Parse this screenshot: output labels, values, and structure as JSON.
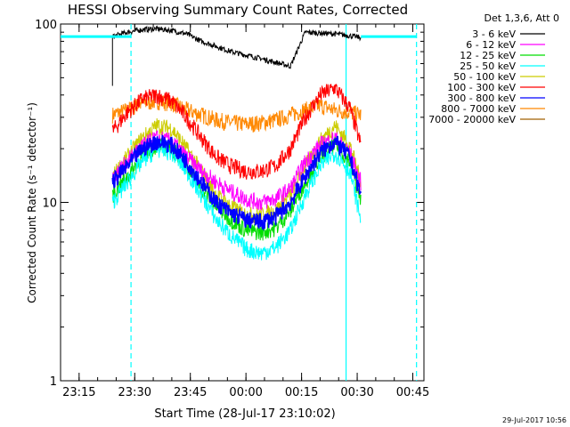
{
  "chart_data": {
    "type": "line",
    "title": "HESSI Observing Summary Count Rates, Corrected",
    "xlabel": "Start Time (28-Jul-17 23:10:02)",
    "ylabel": "Corrected Count Rate (s⁻¹ detector⁻¹)",
    "y_scale": "log",
    "ylim": [
      1,
      100
    ],
    "y_ticks": [
      1,
      10,
      100
    ],
    "y_tick_labels": [
      "1",
      "10",
      "100"
    ],
    "xlim": [
      "23:10",
      "00:48"
    ],
    "x_ticks": [
      "23:15",
      "23:30",
      "23:45",
      "00:00",
      "00:15",
      "00:30",
      "00:45"
    ],
    "legend": {
      "header": "Det 1,3,6, Att 0",
      "placement": "outside-right"
    },
    "timestamp": "29-Jul-2017 10:56",
    "time_points": [
      "23:24",
      "23:28",
      "23:32",
      "23:36",
      "23:40",
      "23:44",
      "23:48",
      "23:52",
      "23:56",
      "00:00",
      "00:04",
      "00:08",
      "00:12",
      "00:16",
      "00:20",
      "00:24",
      "00:28",
      "00:31"
    ],
    "series": [
      {
        "name": "3 - 6 keV",
        "color": "#000000",
        "values": [
          85,
          90,
          93,
          94,
          92,
          88,
          80,
          75,
          70,
          67,
          64,
          61,
          58,
          90,
          89,
          88,
          86,
          84
        ]
      },
      {
        "name": "6 - 12 keV",
        "color": "#ff00ff",
        "values": [
          14,
          17,
          21,
          23,
          22,
          18,
          15,
          13,
          11.5,
          10.5,
          10,
          10.5,
          12,
          17,
          21,
          23,
          19,
          13
        ]
      },
      {
        "name": "12 - 25 keV",
        "color": "#00dd00",
        "values": [
          11,
          14,
          18,
          21,
          20,
          16,
          12,
          9.5,
          8,
          7,
          6.8,
          7.2,
          9,
          13,
          18,
          21,
          17,
          10
        ]
      },
      {
        "name": "25 - 50 keV",
        "color": "#00ffff",
        "values": [
          10,
          13,
          17,
          20,
          19,
          15,
          11,
          8,
          6.5,
          5.5,
          5.2,
          5.6,
          7,
          11,
          16,
          19,
          15,
          8
        ]
      },
      {
        "name": "50 - 100 keV",
        "color": "#cccc00",
        "values": [
          14,
          18,
          23,
          27,
          26,
          20,
          15,
          11,
          9.5,
          8.5,
          8.5,
          9,
          11,
          16,
          22,
          27,
          21,
          13
        ]
      },
      {
        "name": "100 - 300 keV",
        "color": "#ff0000",
        "values": [
          25,
          32,
          38,
          40,
          37,
          30,
          23,
          18,
          16,
          15,
          15,
          16,
          20,
          30,
          40,
          44,
          34,
          21
        ]
      },
      {
        "name": "300 - 800 keV",
        "color": "#0000ff",
        "values": [
          13,
          16,
          20,
          22,
          21,
          17,
          13,
          10,
          8.7,
          8,
          7.8,
          8.3,
          10,
          14,
          19,
          22,
          18,
          11
        ]
      },
      {
        "name": "800 - 7000 keV",
        "color": "#ff8800",
        "values": [
          31,
          33,
          36,
          37,
          36,
          33,
          31,
          29,
          28,
          27.5,
          28,
          29,
          31,
          33,
          35,
          33,
          32,
          31
        ]
      },
      {
        "name": "7000 - 20000 keV",
        "color": "#a06000",
        "values": []
      }
    ],
    "flag_line": {
      "color": "#00ffff",
      "value": 85,
      "segments": [
        [
          "23:10",
          "23:29"
        ],
        [
          "00:31",
          "00:46"
        ]
      ]
    },
    "vertical_lines": [
      {
        "time": "23:29",
        "style": "dashed",
        "color": "#00ffff"
      },
      {
        "time": "00:27",
        "style": "solid",
        "color": "#00ffff"
      },
      {
        "time": "00:46",
        "style": "dashed",
        "color": "#00ffff"
      }
    ]
  }
}
